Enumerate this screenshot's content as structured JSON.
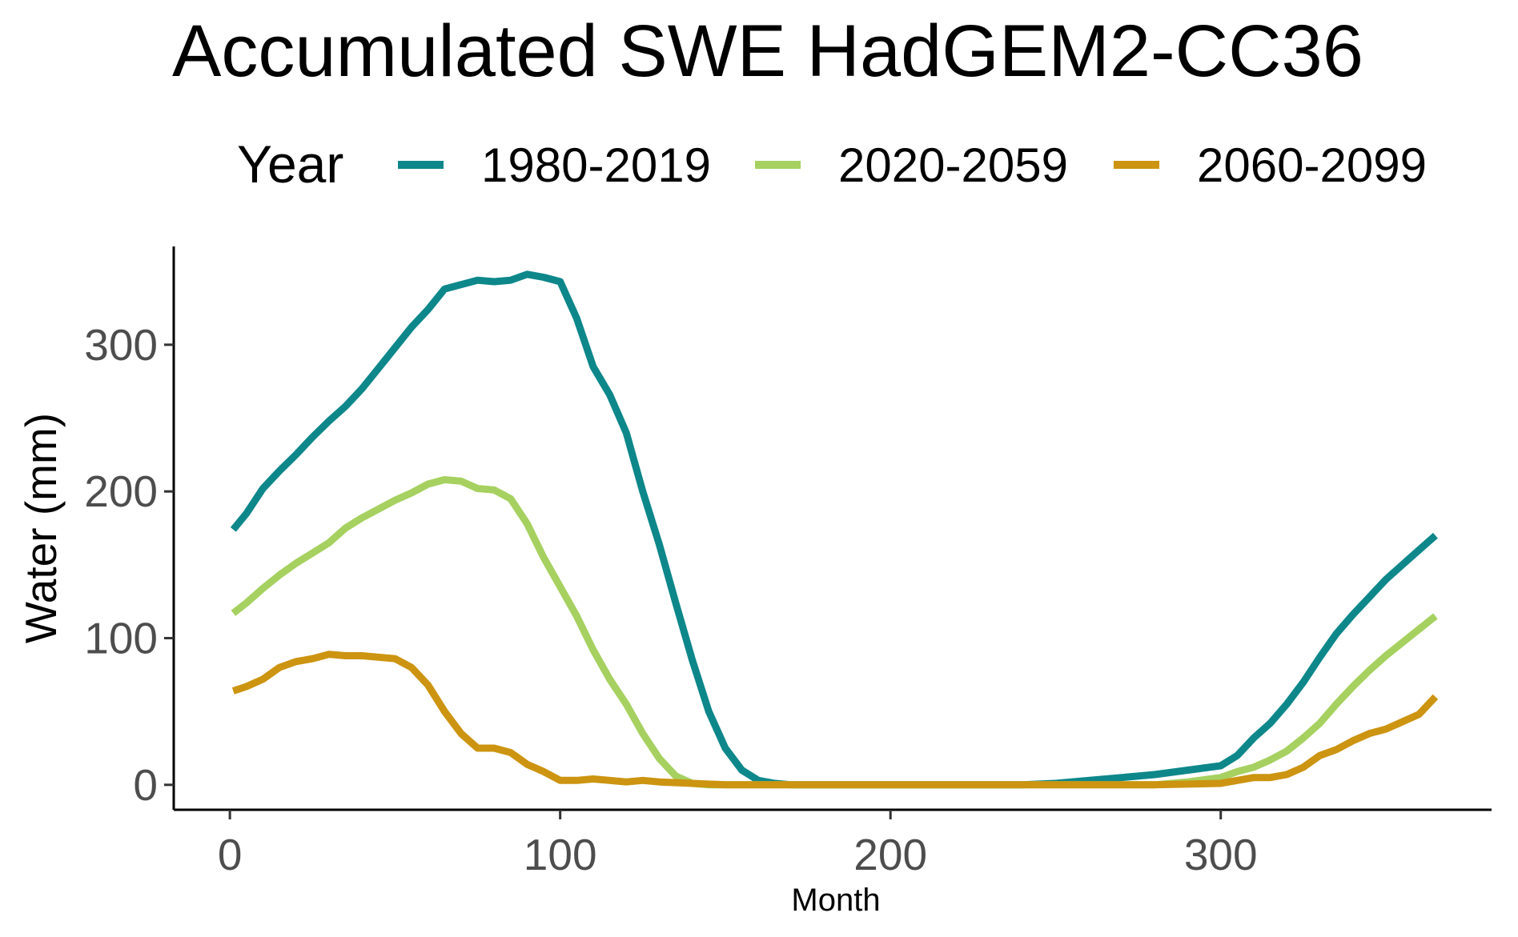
{
  "chart_data": {
    "type": "line",
    "title": "Accumulated SWE HadGEM2-CC36",
    "xlabel": "Month",
    "ylabel": "Water (mm)",
    "xlim": [
      -17,
      382
    ],
    "ylim": [
      -17,
      367
    ],
    "xticks": [
      0,
      100,
      200,
      300
    ],
    "yticks": [
      0,
      100,
      200,
      300
    ],
    "grid": false,
    "legend": {
      "title": "Year",
      "position": "top"
    },
    "series": [
      {
        "name": "1980-2019",
        "color": "#0d878a",
        "x": [
          1,
          5,
          10,
          15,
          20,
          25,
          30,
          35,
          40,
          45,
          50,
          55,
          60,
          65,
          70,
          75,
          80,
          85,
          90,
          95,
          100,
          105,
          110,
          115,
          120,
          125,
          130,
          135,
          140,
          145,
          150,
          155,
          160,
          165,
          170,
          175,
          180,
          200,
          220,
          240,
          250,
          260,
          270,
          280,
          290,
          300,
          305,
          310,
          315,
          320,
          325,
          330,
          335,
          340,
          345,
          350,
          355,
          360,
          365
        ],
        "values": [
          174,
          185,
          202,
          214,
          225,
          237,
          248,
          258,
          270,
          284,
          298,
          312,
          324,
          338,
          341,
          344,
          343,
          344,
          348,
          346,
          343,
          318,
          285,
          266,
          240,
          200,
          164,
          124,
          85,
          50,
          25,
          10,
          3,
          1,
          0,
          0,
          0,
          0,
          0,
          0,
          1,
          3,
          5,
          7,
          10,
          13,
          20,
          32,
          42,
          55,
          70,
          87,
          103,
          116,
          128,
          140,
          150,
          160,
          170
        ]
      },
      {
        "name": "2020-2059",
        "color": "#a6d160",
        "x": [
          1,
          5,
          10,
          15,
          20,
          25,
          30,
          35,
          40,
          45,
          50,
          55,
          60,
          65,
          70,
          75,
          80,
          85,
          90,
          95,
          100,
          105,
          110,
          115,
          120,
          125,
          130,
          135,
          140,
          145,
          150,
          160,
          180,
          200,
          220,
          240,
          260,
          280,
          290,
          300,
          305,
          310,
          315,
          320,
          325,
          330,
          335,
          340,
          345,
          350,
          355,
          360,
          365
        ],
        "values": [
          117,
          124,
          134,
          143,
          151,
          158,
          165,
          175,
          182,
          188,
          194,
          199,
          205,
          208,
          207,
          202,
          201,
          195,
          178,
          155,
          135,
          115,
          92,
          72,
          55,
          35,
          18,
          6,
          1,
          0,
          0,
          0,
          0,
          0,
          0,
          0,
          0,
          0,
          2,
          5,
          9,
          12,
          17,
          23,
          32,
          42,
          55,
          67,
          78,
          88,
          97,
          106,
          115
        ]
      },
      {
        "name": "2060-2099",
        "color": "#cc9410",
        "x": [
          1,
          5,
          10,
          15,
          20,
          25,
          30,
          35,
          40,
          45,
          50,
          55,
          60,
          65,
          70,
          75,
          80,
          85,
          90,
          95,
          100,
          105,
          110,
          115,
          120,
          125,
          130,
          140,
          150,
          160,
          180,
          200,
          220,
          240,
          260,
          280,
          300,
          305,
          310,
          315,
          320,
          325,
          330,
          335,
          340,
          345,
          350,
          355,
          360,
          365
        ],
        "values": [
          64,
          67,
          72,
          80,
          84,
          86,
          89,
          88,
          88,
          87,
          86,
          80,
          68,
          50,
          35,
          25,
          25,
          22,
          14,
          9,
          3,
          3,
          4,
          3,
          2,
          3,
          2,
          1,
          0,
          0,
          0,
          0,
          0,
          0,
          0,
          0,
          1,
          3,
          5,
          5,
          7,
          12,
          20,
          24,
          30,
          35,
          38,
          43,
          48,
          60
        ]
      }
    ]
  }
}
